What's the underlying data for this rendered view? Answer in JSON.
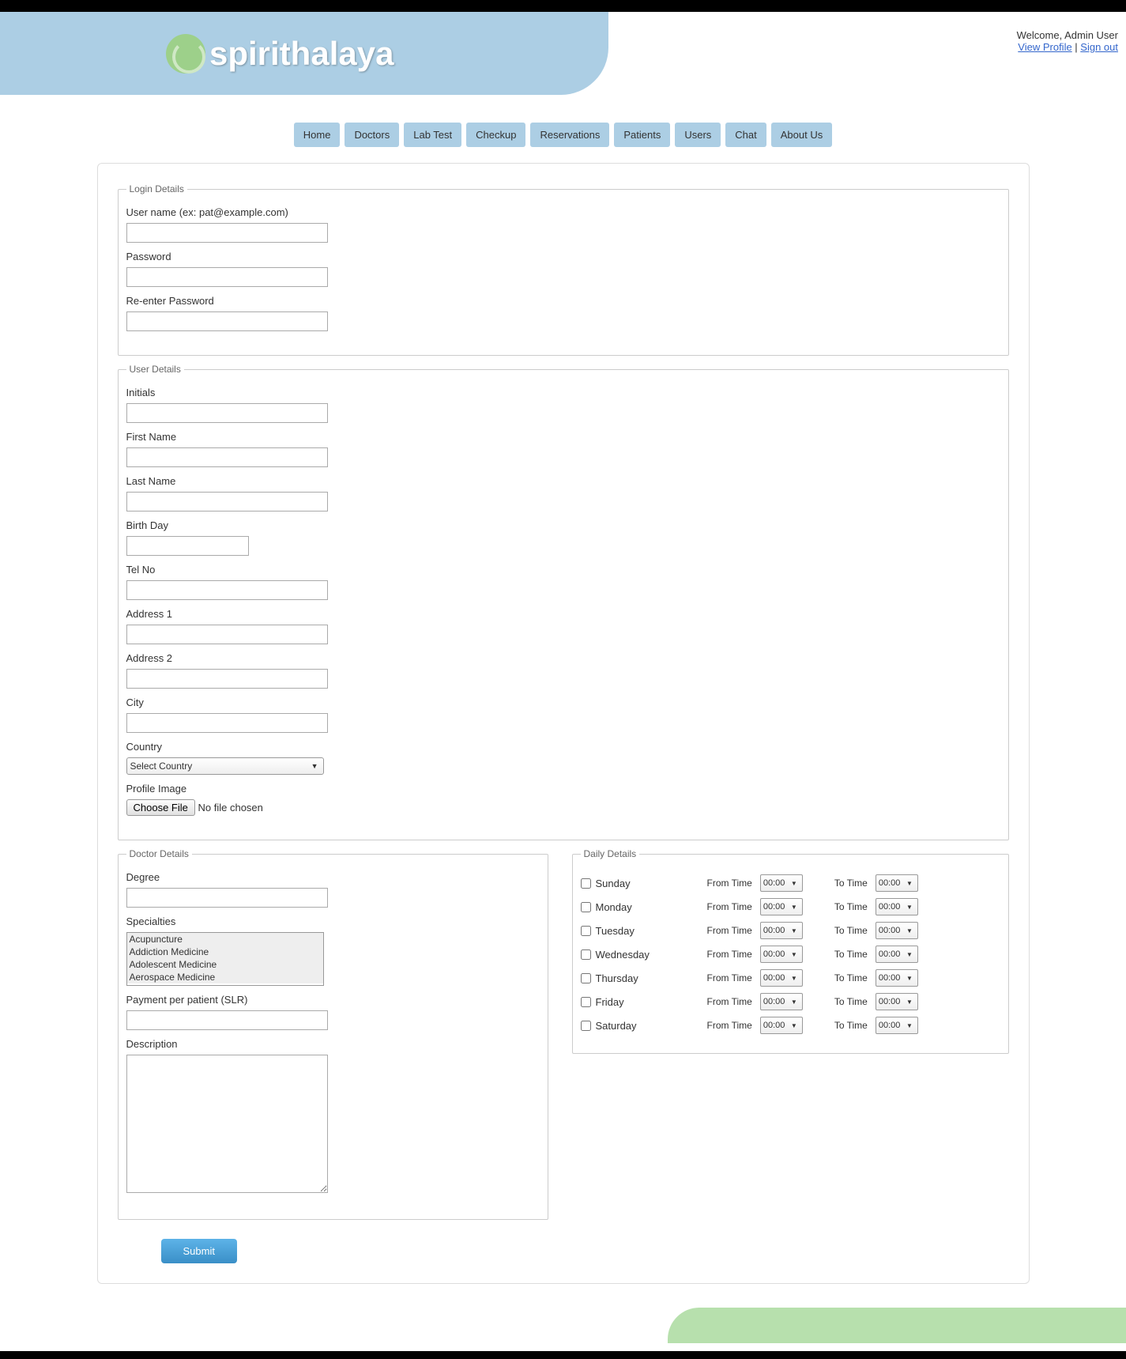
{
  "brand": {
    "name": "spirithalaya"
  },
  "welcome": {
    "prefix": "Welcome, ",
    "user": "Admin User",
    "view_profile": "View Profile",
    "separator": " | ",
    "sign_out": "Sign out"
  },
  "nav": {
    "home": "Home",
    "doctors": "Doctors",
    "labtest": "Lab Test",
    "checkup": "Checkup",
    "reservations": "Reservations",
    "patients": "Patients",
    "users": "Users",
    "chat": "Chat",
    "about": "About Us"
  },
  "login_legend": "Login Details",
  "login": {
    "username_label": "User name (ex: pat@example.com)",
    "password_label": "Password",
    "reenter_label": "Re-enter Password"
  },
  "user_legend": "User Details",
  "user": {
    "initials": "Initials",
    "first_name": "First Name",
    "last_name": "Last Name",
    "birthday": "Birth Day",
    "telno": "Tel No",
    "address1": "Address 1",
    "address2": "Address 2",
    "city": "City",
    "country": "Country",
    "country_value": "Select Country",
    "profile_image": "Profile Image",
    "choose_file": "Choose File",
    "no_file": "No file chosen"
  },
  "doctor_legend": "Doctor Details",
  "doctor": {
    "degree": "Degree",
    "specialties": "Specialties",
    "ppp": "Payment per patient (SLR)",
    "description": "Description"
  },
  "specialties_list": {
    "s0": "Acupuncture",
    "s1": "Addiction Medicine",
    "s2": "Adolescent Medicine",
    "s3": "Aerospace Medicine"
  },
  "daily_legend": "Daily Details",
  "days": {
    "sun": "Sunday",
    "mon": "Monday",
    "tue": "Tuesday",
    "wed": "Wednesday",
    "thu": "Thursday",
    "fri": "Friday",
    "sat": "Saturday"
  },
  "time_labels": {
    "from": "From Time",
    "to": "To Time"
  },
  "time_default": "00:00",
  "submit": "Submit",
  "colors": {
    "header_bg": "#accee4",
    "logo_green": "#9dd08a",
    "nav_bg": "#accee4",
    "footer_green": "#b7e0ad",
    "submit_bg": "#3a8fc7"
  }
}
